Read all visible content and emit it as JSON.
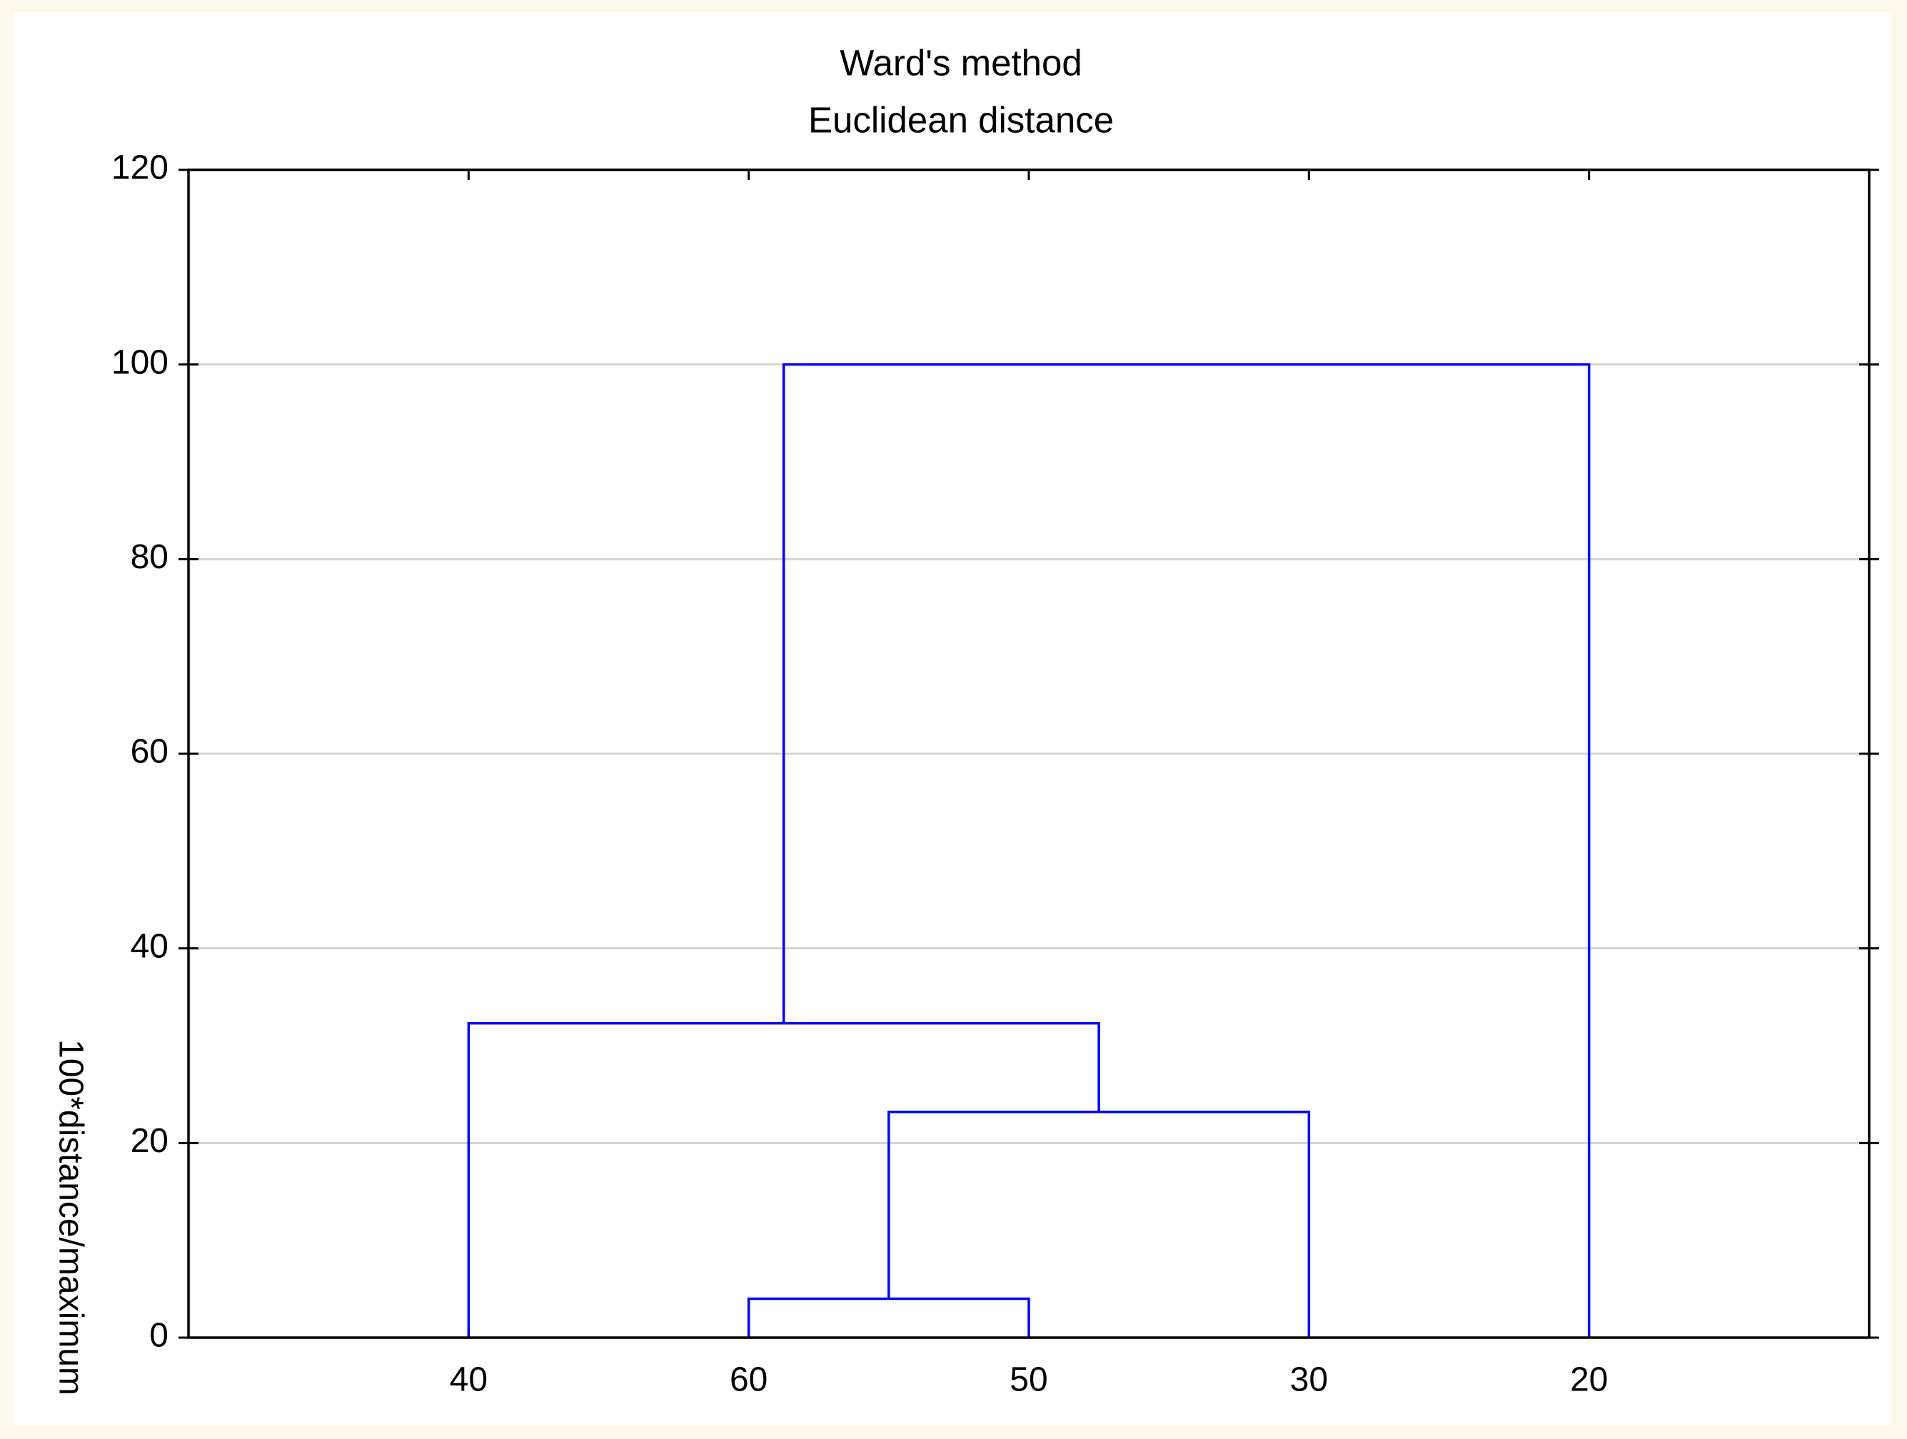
{
  "chart_data": {
    "type": "dendrogram",
    "title": "Ward's method",
    "subtitle": "Euclidean distance",
    "y_label": "100*distance/maximum",
    "categories": [
      "40",
      "60",
      "50",
      "30",
      "20"
    ],
    "merges": [
      {
        "children": [
          1,
          2
        ],
        "height": 4
      },
      {
        "children": [
          5,
          3
        ],
        "height": 23.2
      },
      {
        "children": [
          0,
          6
        ],
        "height": 32.3
      },
      {
        "children": [
          7,
          4
        ],
        "height": 100
      }
    ],
    "color": "#0000ff",
    "ylim": [
      0,
      120
    ],
    "yticks": [
      0,
      20,
      40,
      60,
      80,
      100,
      120
    ],
    "grid": true
  }
}
